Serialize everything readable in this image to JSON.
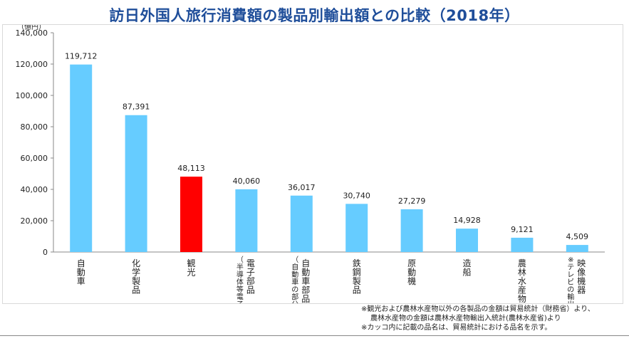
{
  "chart_data": {
    "type": "bar",
    "title": "訪日外国人旅行消費額の製品別輸出額との比較（2018年）",
    "unit_label": "（億円）",
    "ylim": [
      0,
      140000
    ],
    "y_ticks": [
      "140,000",
      "120,000",
      "100,000",
      "80,000",
      "60,000",
      "40,000",
      "20,000",
      "0"
    ],
    "grid": false,
    "categories": [
      {
        "label": "自動車",
        "sub": ""
      },
      {
        "label": "化学製品",
        "sub": ""
      },
      {
        "label": "観光",
        "sub": ""
      },
      {
        "label": "電子部品",
        "sub": "（半導体等電子部品）"
      },
      {
        "label": "自動車部品",
        "sub": "（自動車の部分品）"
      },
      {
        "label": "鉄鋼製品",
        "sub": ""
      },
      {
        "label": "原動機",
        "sub": ""
      },
      {
        "label": "造船",
        "sub": ""
      },
      {
        "label": "農林水産物",
        "sub": ""
      },
      {
        "label": "映像機器",
        "sub": "※テレビの輸出額を含む"
      }
    ],
    "values": [
      119712,
      87391,
      48113,
      40060,
      36017,
      30740,
      27279,
      14928,
      9121,
      4509
    ],
    "value_labels": [
      "119,712",
      "87,391",
      "48,113",
      "40,060",
      "36,017",
      "30,740",
      "27,279",
      "14,928",
      "9,121",
      "4,509"
    ],
    "colors": {
      "default": "#66ccff",
      "highlight": "#ff0000"
    },
    "highlight_index": 2
  },
  "notes": [
    "※観光および農林水産物以外の各製品の金額は貿易統計（財務省）より、",
    "農林水産物の金額は農林水産物輸出入統計(農林水産省)より",
    "※カッコ内に記載の品名は、貿易統計における品名を示す。"
  ]
}
